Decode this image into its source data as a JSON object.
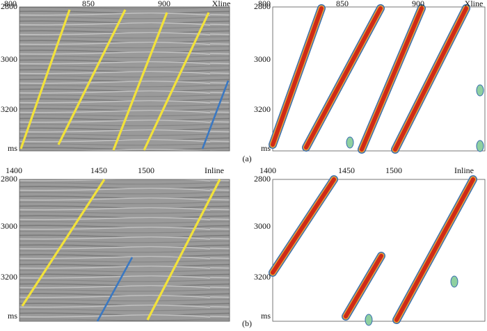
{
  "figure": {
    "panels": [
      {
        "x_ticks": [
          800,
          850,
          900
        ],
        "x_axis_label": "Xline",
        "y_ticks": [
          2800,
          3000,
          3200
        ],
        "y_axis_label": "ms"
      },
      {
        "x_ticks": [
          800,
          850,
          900
        ],
        "x_axis_label": "Xline",
        "y_ticks": [
          2800,
          3000,
          3200
        ],
        "y_axis_label": "ms"
      },
      {
        "x_ticks": [
          1400,
          1450,
          1500
        ],
        "x_axis_label": "Inline",
        "y_ticks": [
          2800,
          3000,
          3200
        ],
        "y_axis_label": "ms"
      },
      {
        "x_ticks": [
          1400,
          1450,
          1500
        ],
        "x_axis_label": "Inline",
        "y_ticks": [
          2800,
          3000,
          3200
        ],
        "y_axis_label": "ms"
      }
    ],
    "captions": [
      "(a)",
      "(b)"
    ]
  }
}
